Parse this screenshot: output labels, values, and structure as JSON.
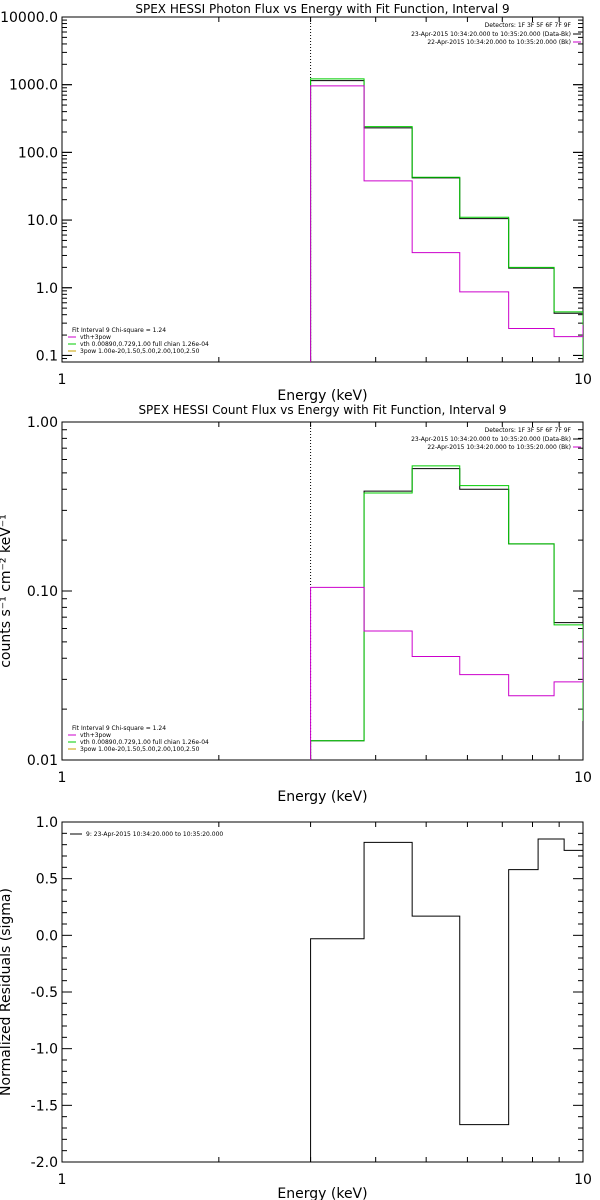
{
  "chart_data": [
    {
      "type": "line",
      "title": "SPEX HESSI Photon Flux vs Energy with Fit Function, Interval 9",
      "xlabel": "Energy (keV)",
      "ylabel": "",
      "xscale": "log",
      "yscale": "log",
      "xlim": [
        1,
        10
      ],
      "ylim": [
        0.08,
        10000
      ],
      "xticks": [
        "1",
        "10"
      ],
      "yticks": [
        "0.1",
        "1.0",
        "10.0",
        "100.0",
        "1000.0",
        "10000.0"
      ],
      "vline_x": 3.0,
      "legend_tr": {
        "detectors": "Detectors: 1F 3F 5F 6F 7F 9F",
        "entries": [
          {
            "text": "23-Apr-2015 10:34:20.000 to 10:35:20.000 (Data-Bk)",
            "color": "#000000"
          },
          {
            "text": "22-Apr-2015 10:34:20.000 to 10:35:20.000 (Bk)",
            "color": "#cc00cc"
          }
        ]
      },
      "legend_bl": {
        "header": "Fit Interval 9    Chi-square = 1.24",
        "entries": [
          {
            "text": "vth+3pow",
            "color": "#cc00cc"
          },
          {
            "text": "vth 0.00890,0.729,1.00  full chian 1.26e-04",
            "color": "#00cc00"
          },
          {
            "text": "3pow 1.00e-20,1.50,5.00,2.00,100,2.50",
            "color": "#c8a000"
          }
        ]
      },
      "bin_edges": [
        3.0,
        3.8,
        4.7,
        5.8,
        7.2,
        8.8,
        10.0
      ],
      "series": [
        {
          "color": "#000000",
          "values": [
            1150,
            230,
            42,
            10.5,
            1.95,
            0.42,
            0.1
          ]
        },
        {
          "color": "#00cc00",
          "values": [
            1220,
            240,
            43,
            11,
            2.0,
            0.44,
            0.09
          ]
        },
        {
          "color": "#cc00cc",
          "values": [
            960,
            38,
            3.3,
            0.87,
            0.25,
            0.19,
            0.28
          ]
        }
      ]
    },
    {
      "type": "line",
      "title": "SPEX HESSI Count Flux vs Energy with Fit Function, Interval 9",
      "xlabel": "Energy (keV)",
      "ylabel": "counts s⁻¹ cm⁻² keV⁻¹",
      "xscale": "log",
      "yscale": "log",
      "xlim": [
        1,
        10
      ],
      "ylim": [
        0.01,
        1.0
      ],
      "xticks": [
        "1",
        "10"
      ],
      "yticks": [
        "0.01",
        "0.10",
        "1.00"
      ],
      "vline_x": 3.0,
      "legend_tr": {
        "detectors": "Detectors: 1F 3F 5F 6F 7F 9F",
        "entries": [
          {
            "text": "23-Apr-2015 10:34:20.000 to 10:35:20.000 (Data-Bk)",
            "color": "#000000"
          },
          {
            "text": "22-Apr-2015 10:34:20.000 to 10:35:20.000 (Bk)",
            "color": "#cc00cc"
          }
        ]
      },
      "legend_bl": {
        "header": "Fit Interval 9    Chi-square = 1.24",
        "entries": [
          {
            "text": "vth+3pow",
            "color": "#cc00cc"
          },
          {
            "text": "vth 0.00890,0.729,1.00  full chian 1.26e-04",
            "color": "#00cc00"
          },
          {
            "text": "3pow 1.00e-20,1.50,5.00,2.00,100,2.50",
            "color": "#c8a000"
          }
        ]
      },
      "bin_edges": [
        3.0,
        3.8,
        4.7,
        5.8,
        7.2,
        8.8,
        10.0
      ],
      "series": [
        {
          "color": "#000000",
          "values": [
            0.013,
            0.39,
            0.53,
            0.4,
            0.19,
            0.065,
            0.02
          ]
        },
        {
          "color": "#00cc00",
          "values": [
            0.013,
            0.38,
            0.55,
            0.42,
            0.19,
            0.063,
            0.017
          ]
        },
        {
          "color": "#cc00cc",
          "values": [
            0.105,
            0.058,
            0.041,
            0.032,
            0.024,
            0.029,
            0.052
          ]
        }
      ]
    },
    {
      "type": "line",
      "title": "",
      "xlabel": "Energy (keV)",
      "ylabel": "Normalized Residuals (sigma)",
      "xscale": "log",
      "yscale": "linear",
      "xlim": [
        1,
        10
      ],
      "ylim": [
        -2.0,
        1.0
      ],
      "xticks": [
        "1",
        "10"
      ],
      "yticks": [
        "-2.0",
        "-1.5",
        "-1.0",
        "-0.5",
        "0.0",
        "0.5",
        "1.0"
      ],
      "legend_tl": {
        "entries": [
          {
            "text": "9: 23-Apr-2015 10:34:20.000 to 10:35:20.000",
            "color": "#000000"
          }
        ]
      },
      "bin_edges": [
        3.0,
        3.8,
        4.7,
        5.8,
        7.2,
        8.2,
        9.2,
        10.0
      ],
      "series": [
        {
          "color": "#000000",
          "values": [
            -0.03,
            0.82,
            0.17,
            -1.67,
            0.58,
            0.85,
            0.75
          ]
        }
      ]
    }
  ]
}
